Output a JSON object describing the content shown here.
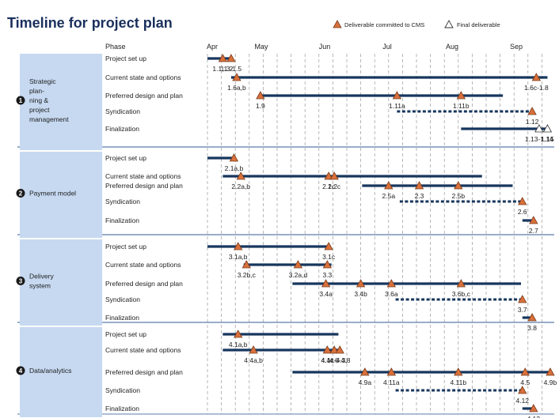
{
  "chart_data": {
    "type": "gantt",
    "title": "Timeline for project plan",
    "legend": {
      "placement": "top-right",
      "committed_label": "Deliverable committed to CMS",
      "final_label": "Final deliverable"
    },
    "phase_header": "Phase",
    "months": [
      "Apr",
      "May",
      "Jun",
      "Jul",
      "Aug",
      "Sep"
    ],
    "time_unit": "weeks from start of April",
    "time_range": [
      0,
      24.6
    ],
    "sections": [
      {
        "number": "1",
        "name": "Strategic plan-ning & project management",
        "rows": [
          {
            "phase": "Project set up",
            "start": 0,
            "end": 1.7,
            "dashed": false,
            "milestones": [
              {
                "at": 1.1,
                "label": "1.1,1.2",
                "type": "committed"
              },
              {
                "at": 1.7,
                "label": "1.3-1.5",
                "type": "committed"
              }
            ]
          },
          {
            "phase": "Current state and options",
            "start": 1.7,
            "end": 24.4,
            "dashed": false,
            "milestones": [
              {
                "at": 2.1,
                "label": "1.6a,b",
                "type": "committed"
              },
              {
                "at": 23.6,
                "label": "1.6c-1.8",
                "type": "committed"
              }
            ]
          },
          {
            "phase": "Preferred design and plan",
            "start": 3.8,
            "end": 21.2,
            "dashed": false,
            "milestones": [
              {
                "at": 3.8,
                "label": "1.9",
                "type": "committed"
              },
              {
                "at": 13.6,
                "label": "1.11a",
                "type": "committed"
              },
              {
                "at": 18.2,
                "label": "1.11b",
                "type": "committed"
              }
            ]
          },
          {
            "phase": "Syndication",
            "start": 13.6,
            "end": 23.3,
            "dashed": true,
            "milestones": [
              {
                "at": 23.3,
                "label": "1.12",
                "type": "committed"
              }
            ]
          },
          {
            "phase": "Finalization",
            "start": 18.2,
            "end": 24.4,
            "dashed": false,
            "milestones": [
              {
                "at": 23.8,
                "label": "1.13-1.14",
                "type": "final"
              },
              {
                "at": 24.4,
                "label": "1.15",
                "type": "final"
              }
            ]
          }
        ]
      },
      {
        "number": "2",
        "name": "Payment model",
        "rows": [
          {
            "phase": "Project set up",
            "start": 0,
            "end": 1.9,
            "dashed": false,
            "milestones": [
              {
                "at": 1.9,
                "label": "2.1a,b",
                "type": "committed"
              }
            ]
          },
          {
            "phase": "Current state and options",
            "start": 1.1,
            "end": 19.7,
            "dashed": false,
            "milestones": [
              {
                "at": 2.4,
                "label": "2.2a,b",
                "type": "committed"
              },
              {
                "at": 8.7,
                "label": "2.1c",
                "type": "committed"
              },
              {
                "at": 9.1,
                "label": "2.2c",
                "type": "committed"
              }
            ]
          },
          {
            "phase": "Preferred design and plan",
            "start": 11.1,
            "end": 21.9,
            "dashed": false,
            "milestones": [
              {
                "at": 13.0,
                "label": "2.5a",
                "type": "committed"
              },
              {
                "at": 15.2,
                "label": "2.3",
                "type": "committed"
              },
              {
                "at": 18.0,
                "label": "2.5b",
                "type": "committed"
              }
            ]
          },
          {
            "phase": "Syndication",
            "start": 13.8,
            "end": 22.6,
            "dashed": true,
            "milestones": [
              {
                "at": 22.6,
                "label": "2.6",
                "type": "committed"
              }
            ]
          },
          {
            "phase": "Finalization",
            "start": 22.6,
            "end": 23.4,
            "dashed": false,
            "milestones": [
              {
                "at": 23.4,
                "label": "2.7",
                "type": "committed"
              }
            ]
          }
        ]
      },
      {
        "number": "3",
        "name": "Delivery system",
        "rows": [
          {
            "phase": "Project set up",
            "start": 0,
            "end": 8.7,
            "dashed": false,
            "milestones": [
              {
                "at": 2.2,
                "label": "3.1a,b",
                "type": "committed"
              },
              {
                "at": 8.7,
                "label": "3.1c",
                "type": "committed"
              }
            ]
          },
          {
            "phase": "Current state and options",
            "start": 2.6,
            "end": 8.9,
            "dashed": false,
            "milestones": [
              {
                "at": 2.8,
                "label": "3.2b,c",
                "type": "committed"
              },
              {
                "at": 6.5,
                "label": "3.2a,d",
                "type": "committed"
              },
              {
                "at": 8.6,
                "label": "3.3",
                "type": "committed"
              }
            ]
          },
          {
            "phase": "Preferred design and plan",
            "start": 6.1,
            "end": 22.5,
            "dashed": false,
            "milestones": [
              {
                "at": 8.5,
                "label": "3.4a",
                "type": "committed"
              },
              {
                "at": 11.0,
                "label": "3.4b",
                "type": "committed"
              },
              {
                "at": 13.2,
                "label": "3.6a",
                "type": "committed"
              },
              {
                "at": 18.2,
                "label": "3.6b,c",
                "type": "committed"
              }
            ]
          },
          {
            "phase": "Syndication",
            "start": 13.5,
            "end": 22.6,
            "dashed": true,
            "milestones": [
              {
                "at": 22.6,
                "label": "3.7",
                "type": "committed"
              }
            ]
          },
          {
            "phase": "Finalization",
            "start": 22.6,
            "end": 23.3,
            "dashed": false,
            "milestones": [
              {
                "at": 23.3,
                "label": "3.8",
                "type": "committed"
              }
            ]
          }
        ]
      },
      {
        "number": "4",
        "name": "Data/analytics",
        "rows": [
          {
            "phase": "Project set up",
            "start": 1.1,
            "end": 9.4,
            "dashed": false,
            "milestones": [
              {
                "at": 2.2,
                "label": "4.1a,b",
                "type": "committed"
              }
            ]
          },
          {
            "phase": "Current state and options",
            "start": 1.1,
            "end": 9.5,
            "dashed": false,
            "milestones": [
              {
                "at": 3.3,
                "label": "4.4a,b",
                "type": "committed"
              },
              {
                "at": 8.6,
                "label": "4.4c",
                "type": "committed"
              },
              {
                "at": 9.1,
                "label": "4.1c-4.3,",
                "type": "committed"
              },
              {
                "at": 9.5,
                "label": "4.6-4.8",
                "type": "committed"
              }
            ]
          },
          {
            "phase": "Preferred design and plan",
            "start": 6.1,
            "end": 24.6,
            "dashed": false,
            "milestones": [
              {
                "at": 11.3,
                "label": "4.9a",
                "type": "committed"
              },
              {
                "at": 13.2,
                "label": "4.11a",
                "type": "committed"
              },
              {
                "at": 18.0,
                "label": "4.11b",
                "type": "committed"
              },
              {
                "at": 22.8,
                "label": "4.5",
                "type": "committed"
              },
              {
                "at": 24.6,
                "label": "4.9b",
                "type": "committed"
              }
            ]
          },
          {
            "phase": "Syndication",
            "start": 13.5,
            "end": 22.6,
            "dashed": true,
            "milestones": [
              {
                "at": 22.6,
                "label": "4.12",
                "type": "committed"
              }
            ]
          },
          {
            "phase": "Finalization",
            "start": 22.6,
            "end": 23.4,
            "dashed": false,
            "milestones": [
              {
                "at": 23.4,
                "label": "4.13",
                "type": "committed"
              }
            ]
          }
        ]
      }
    ]
  },
  "colors": {
    "title": "#1a2f5c",
    "bar": "#17365d",
    "milestone_fill": "#d9703b",
    "milestone_stroke": "#7a3c1c",
    "section_box": "#c6d9f1",
    "grid": "#999999",
    "separator": "#5b7ea8"
  }
}
